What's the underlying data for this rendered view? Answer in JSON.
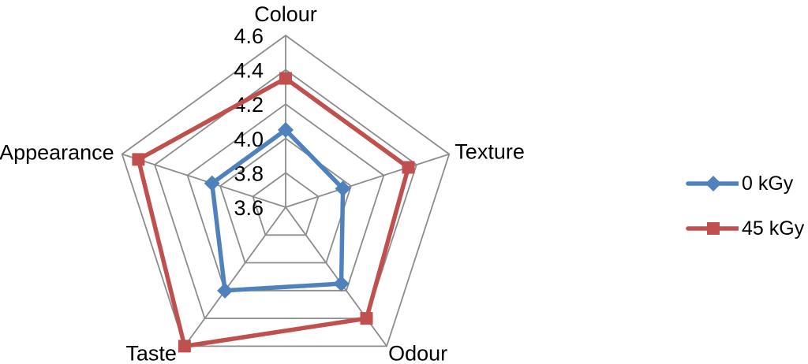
{
  "figure": {
    "background": "#ffffff",
    "text_color": "#000000"
  },
  "chart_data": {
    "type": "radar",
    "title": "",
    "categories": [
      "Colour",
      "Texture",
      "Odour",
      "Taste",
      "Appearance"
    ],
    "series": [
      {
        "name": "0 kGy",
        "color": "#4F81BD",
        "marker": "diamond",
        "values": [
          4.05,
          3.95,
          4.15,
          4.2,
          4.05
        ]
      },
      {
        "name": "45 kGy",
        "color": "#C0504D",
        "marker": "square",
        "values": [
          4.35,
          4.35,
          4.4,
          4.6,
          4.5
        ]
      }
    ],
    "radial_axis": {
      "min": 3.6,
      "max": 4.6,
      "step": 0.2,
      "tick_labels": [
        "3.6",
        "3.8",
        "4.0",
        "4.2",
        "4.4",
        "4.6"
      ]
    },
    "grid": true,
    "grid_color": "#8C8C8C",
    "legend_position": "right"
  }
}
